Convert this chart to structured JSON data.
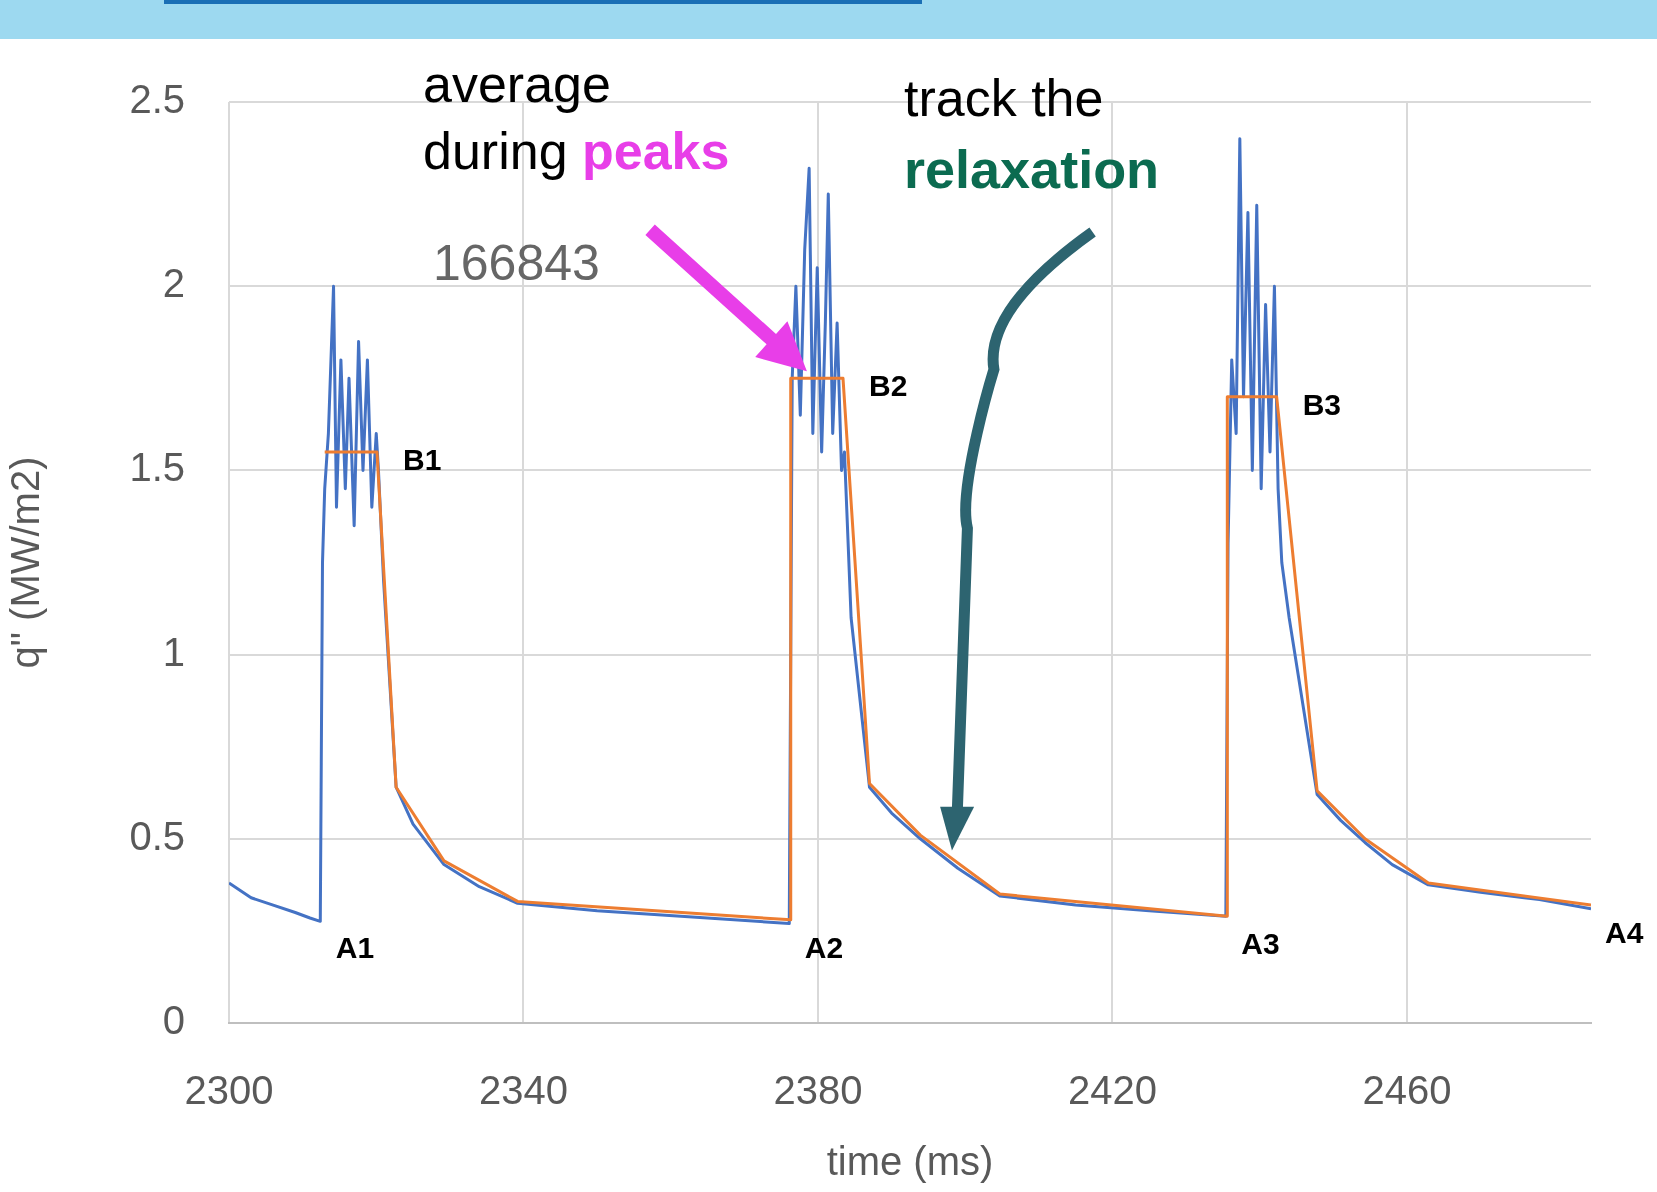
{
  "chart_data": {
    "type": "line",
    "xlabel": "time (ms)",
    "ylabel": "q\" (MW/m2)",
    "xlim": [
      2300,
      2485
    ],
    "xticks": [
      2300,
      2340,
      2380,
      2420,
      2460
    ],
    "ylim": [
      0,
      2.5
    ],
    "yticks": [
      0,
      0.5,
      1,
      1.5,
      2,
      2.5
    ],
    "grid": true,
    "legend": false,
    "marker": "none",
    "line_style": "solid",
    "series": [
      {
        "color": "#4472c4",
        "x": [
          2300,
          2303,
          2306,
          2309,
          2311,
          2312.4,
          2312.7,
          2313,
          2313.5,
          2314.2,
          2314.6,
          2315.2,
          2315.8,
          2316.3,
          2317,
          2317.6,
          2318.2,
          2318.8,
          2319.4,
          2320,
          2320.3,
          2321,
          2322.7,
          2325,
          2329.2,
          2334,
          2339.2,
          2350,
          2365,
          2376.1,
          2376.5,
          2377,
          2377.6,
          2378.2,
          2378.8,
          2379.3,
          2379.9,
          2380.5,
          2381,
          2381.4,
          2382,
          2382.6,
          2383.2,
          2383.6,
          2384.5,
          2387,
          2390,
          2393.9,
          2399,
          2404.7,
          2415,
          2425,
          2435.4,
          2435.7,
          2436.2,
          2436.8,
          2437.3,
          2437.8,
          2438.4,
          2439,
          2439.6,
          2440.2,
          2440.8,
          2441.4,
          2442,
          2442.5,
          2443,
          2444,
          2447.8,
          2451,
          2454.3,
          2458,
          2462.9,
          2470,
          2478,
          2485
        ],
        "values": [
          0.38,
          0.34,
          0.32,
          0.3,
          0.285,
          0.276,
          1.25,
          1.45,
          1.6,
          2.0,
          1.4,
          1.8,
          1.45,
          1.75,
          1.35,
          1.85,
          1.5,
          1.8,
          1.4,
          1.6,
          1.5,
          1.2,
          0.64,
          0.54,
          0.43,
          0.37,
          0.325,
          0.305,
          0.285,
          0.27,
          1.75,
          2.0,
          1.65,
          2.1,
          2.32,
          1.6,
          2.05,
          1.55,
          1.9,
          2.25,
          1.6,
          1.9,
          1.5,
          1.55,
          1.1,
          0.64,
          0.57,
          0.5,
          0.42,
          0.345,
          0.32,
          0.305,
          0.29,
          1.3,
          1.8,
          1.6,
          2.4,
          1.7,
          2.2,
          1.5,
          2.22,
          1.45,
          1.95,
          1.55,
          2.0,
          1.45,
          1.25,
          1.1,
          0.62,
          0.55,
          0.49,
          0.43,
          0.375,
          0.355,
          0.335,
          0.31
        ]
      },
      {
        "color": "#ed7d31",
        "x": [
          2313,
          2320.1,
          2322.7,
          2329.2,
          2339.2,
          2376.3,
          2376.3,
          2383.4,
          2387,
          2393.9,
          2404.7,
          2435.6,
          2435.6,
          2442.3,
          2447.8,
          2454.3,
          2462.9,
          2485
        ],
        "values": [
          1.55,
          1.55,
          0.64,
          0.44,
          0.33,
          0.28,
          1.75,
          1.75,
          0.65,
          0.51,
          0.35,
          0.29,
          1.7,
          1.7,
          0.63,
          0.5,
          0.38,
          0.32
        ]
      }
    ],
    "annotations": [
      "average",
      "during ",
      "peaks",
      "track the",
      "relaxation",
      "166843",
      {
        "text": "A1",
        "x": 2312.6,
        "y": 0.28
      },
      {
        "text": "B1",
        "x": 2320.1,
        "y": 1.55
      },
      {
        "text": "A2",
        "x": 2376.3,
        "y": 0.28
      },
      {
        "text": "B2",
        "x": 2383.4,
        "y": 1.75
      },
      {
        "text": "A3",
        "x": 2435.6,
        "y": 0.29
      },
      {
        "text": "B3",
        "x": 2442.3,
        "y": 1.7
      },
      {
        "text": "A4",
        "x": 2485,
        "y": 0.32
      }
    ]
  }
}
